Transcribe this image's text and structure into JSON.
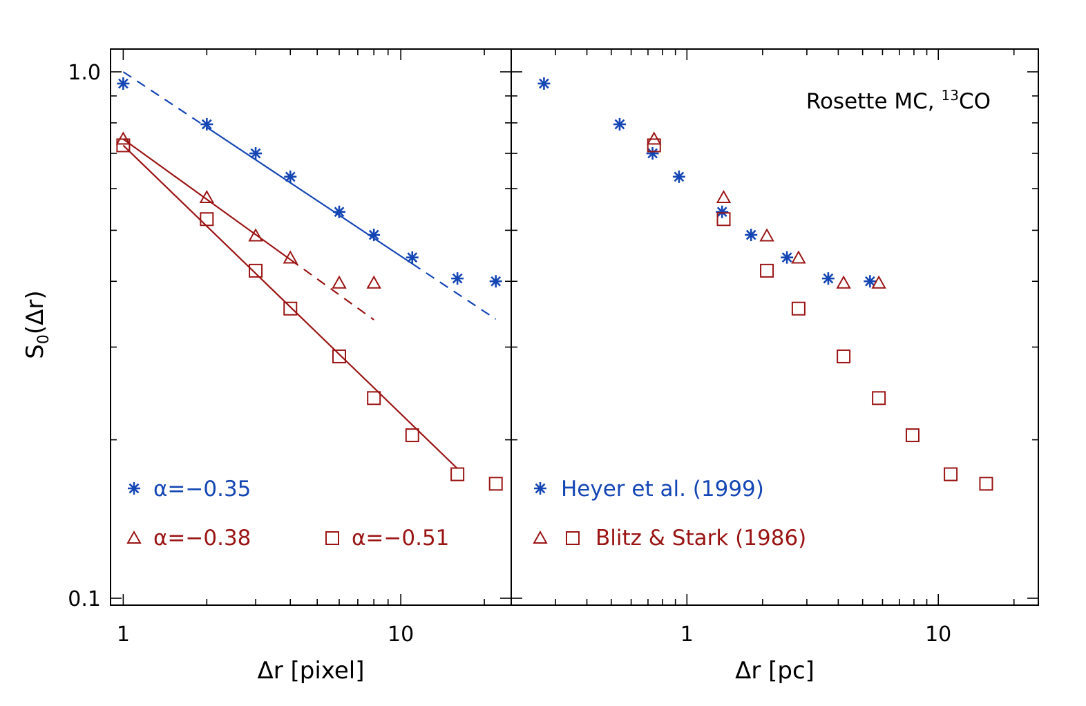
{
  "colors": {
    "blue": "#1446b4",
    "red": "#9b1414",
    "axis": "#000000"
  },
  "y_axis": {
    "label_main": "S",
    "label_sub": "0",
    "label_rest": "(Δr)",
    "ticklabels": [
      "1.0",
      "0.1"
    ],
    "ylim": [
      0.1,
      1.0
    ],
    "scale": "log"
  },
  "chart_data": [
    {
      "type": "scatter",
      "panel": "left",
      "xlabel": "Δr [pixel]",
      "xlim": [
        0.9,
        25
      ],
      "xscale": "log",
      "xticklabels": [
        "1",
        "10"
      ],
      "series": [
        {
          "name": "α=−0.35",
          "marker": "asterisk",
          "color": "blue",
          "x": [
            1,
            2,
            3,
            4,
            6,
            8,
            11,
            16,
            22
          ],
          "y": [
            0.95,
            0.795,
            0.7,
            0.632,
            0.542,
            0.49,
            0.444,
            0.405,
            0.4
          ]
        },
        {
          "name": "α=−0.38",
          "marker": "triangle",
          "color": "red",
          "x": [
            1,
            2,
            3,
            4,
            6,
            8
          ],
          "y": [
            0.745,
            0.577,
            0.488,
            0.443,
            0.397,
            0.397
          ]
        },
        {
          "name": "α=−0.51",
          "marker": "square",
          "color": "red",
          "x": [
            1,
            2,
            3,
            4,
            6,
            8,
            11,
            16,
            22
          ],
          "y": [
            0.725,
            0.525,
            0.419,
            0.355,
            0.288,
            0.24,
            0.204,
            0.172,
            0.165
          ]
        }
      ],
      "fits": [
        {
          "series": "α=−0.35",
          "color": "blue",
          "slope": -0.35,
          "intercept": 1.0,
          "solid_x": [
            2,
            11
          ],
          "dashed_x": [
            [
              1,
              2
            ],
            [
              11,
              22
            ]
          ]
        },
        {
          "series": "α=−0.38",
          "color": "red",
          "slope": -0.38,
          "intercept": 0.745,
          "solid_x": [
            1,
            4
          ],
          "dashed_x": [
            [
              4,
              8
            ]
          ]
        },
        {
          "series": "α=−0.51",
          "color": "red",
          "slope": -0.51,
          "intercept": 0.725,
          "solid_x": [
            1,
            16
          ],
          "dashed_x": []
        }
      ],
      "legend": [
        {
          "marker": "asterisk",
          "color": "blue",
          "text": "α=−0.35"
        },
        {
          "marker": "triangle",
          "color": "red",
          "text": "α=−0.38"
        },
        {
          "marker": "square",
          "color": "red",
          "text": "α=−0.51"
        }
      ]
    },
    {
      "type": "scatter",
      "panel": "right",
      "xlabel": "Δr [pc]",
      "xlim": [
        0.2,
        25
      ],
      "xscale": "log",
      "xticklabels": [
        "1",
        "10"
      ],
      "annotation": {
        "text": "Rosette MC, ",
        "sup": "13",
        "text2": "CO"
      },
      "series": [
        {
          "name": "Heyer et al. (1999)",
          "marker": "asterisk",
          "color": "blue",
          "x": [
            0.27,
            0.54,
            0.73,
            0.93,
            1.38,
            1.8,
            2.5,
            3.65,
            5.35
          ],
          "y": [
            0.95,
            0.795,
            0.7,
            0.632,
            0.542,
            0.49,
            0.444,
            0.405,
            0.4
          ]
        },
        {
          "name": "Blitz & Stark (1986) triangles",
          "marker": "triangle",
          "color": "red",
          "x": [
            0.74,
            1.4,
            2.08,
            2.78,
            4.2,
            5.8
          ],
          "y": [
            0.745,
            0.577,
            0.488,
            0.443,
            0.397,
            0.397
          ]
        },
        {
          "name": "Blitz & Stark (1986) squares",
          "marker": "square",
          "color": "red",
          "x": [
            0.74,
            1.4,
            2.08,
            2.78,
            4.2,
            5.8,
            7.9,
            11.2,
            15.5
          ],
          "y": [
            0.725,
            0.525,
            0.419,
            0.355,
            0.288,
            0.24,
            0.204,
            0.172,
            0.165
          ]
        }
      ],
      "legend": [
        {
          "markers": [
            "asterisk"
          ],
          "color": "blue",
          "text": "Heyer et al. (1999)"
        },
        {
          "markers": [
            "triangle",
            "square"
          ],
          "color": "red",
          "text": "Blitz & Stark (1986)"
        }
      ]
    }
  ]
}
